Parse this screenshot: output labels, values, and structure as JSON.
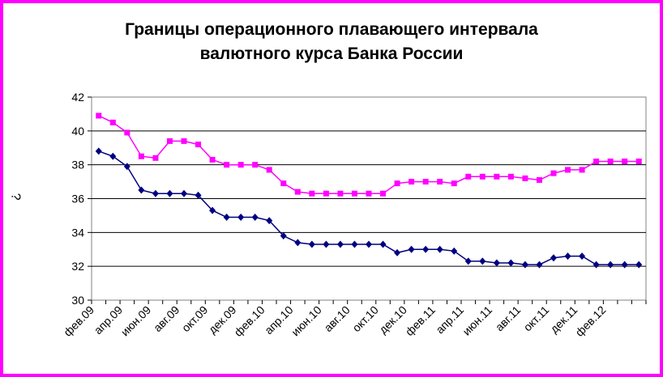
{
  "chart_data": {
    "type": "line",
    "title": "Границы операционного плавающего интервала\nвалютного курса Банка России",
    "ylabel": "¿",
    "ylim": [
      30,
      42
    ],
    "yticks": [
      30,
      32,
      34,
      36,
      38,
      40,
      42
    ],
    "grid": true,
    "x_tick_labels": [
      "фев.09",
      "апр.09",
      "июн.09",
      "авг.09",
      "окт.09",
      "дек.09",
      "фев.10",
      "апр.10",
      "июн.10",
      "авг.10",
      "окт.10",
      "дек.10",
      "фев.11",
      "апр.11",
      "июн.11",
      "авг.11",
      "окт.11",
      "дек.11",
      "фев.12"
    ],
    "series": [
      {
        "color": "#ff00ff",
        "marker": "square",
        "values": [
          40.9,
          40.5,
          39.9,
          38.5,
          38.4,
          39.4,
          39.4,
          39.2,
          38.3,
          38.0,
          38.0,
          38.0,
          37.7,
          36.9,
          36.4,
          36.3,
          36.3,
          36.3,
          36.3,
          36.3,
          36.3,
          36.9,
          37.0,
          37.0,
          37.0,
          36.9,
          37.3,
          37.3,
          37.3,
          37.3,
          37.2,
          37.1,
          37.5,
          37.7,
          37.7,
          38.2,
          38.2,
          38.2,
          38.2
        ]
      },
      {
        "color": "#000080",
        "marker": "diamond",
        "values": [
          38.8,
          38.5,
          37.9,
          36.5,
          36.3,
          36.3,
          36.3,
          36.2,
          35.3,
          34.9,
          34.9,
          34.9,
          34.7,
          33.8,
          33.4,
          33.3,
          33.3,
          33.3,
          33.3,
          33.3,
          33.3,
          32.8,
          33.0,
          33.0,
          33.0,
          32.9,
          32.3,
          32.3,
          32.2,
          32.2,
          32.1,
          32.1,
          32.5,
          32.6,
          32.6,
          32.1,
          32.1,
          32.1,
          32.1
        ]
      }
    ]
  }
}
